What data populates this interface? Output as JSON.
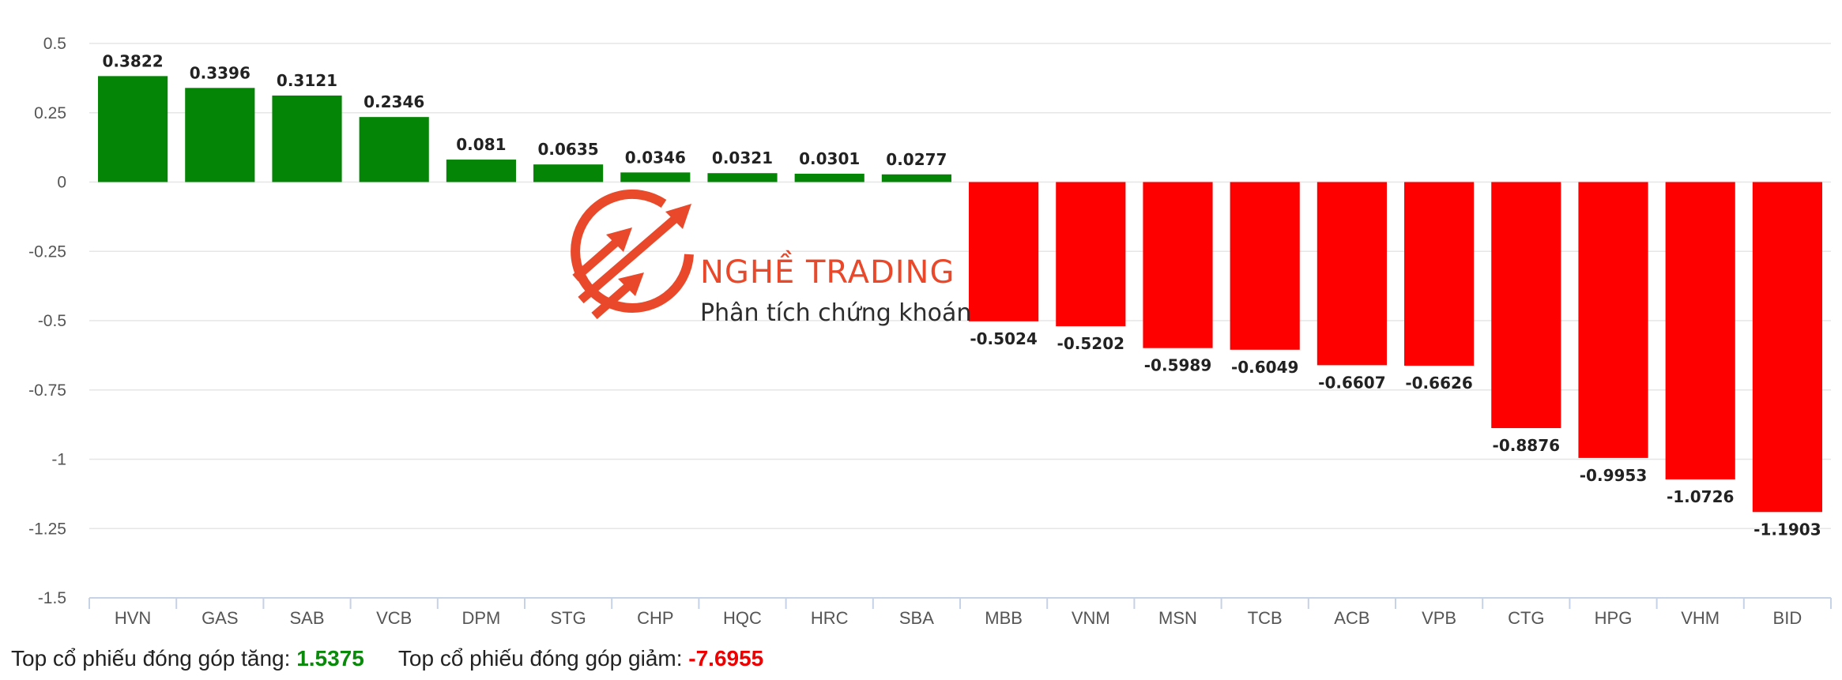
{
  "chart_data": {
    "type": "bar",
    "title": "",
    "xlabel": "",
    "ylabel": "",
    "ylim": [
      -1.5,
      0.5
    ],
    "yticks": [
      0.5,
      0.25,
      0,
      -0.25,
      -0.5,
      -0.75,
      -1,
      -1.25,
      -1.5
    ],
    "ytick_labels": [
      "0.5",
      "0.25",
      "0",
      "-0.25",
      "-0.5",
      "-0.75",
      "-1",
      "-1.25",
      "-1.5"
    ],
    "categories": [
      "HVN",
      "GAS",
      "SAB",
      "VCB",
      "DPM",
      "STG",
      "CHP",
      "HQC",
      "HRC",
      "SBA",
      "MBB",
      "VNM",
      "MSN",
      "TCB",
      "ACB",
      "VPB",
      "CTG",
      "HPG",
      "VHM",
      "BID"
    ],
    "values": [
      0.3822,
      0.3396,
      0.3121,
      0.2346,
      0.081,
      0.0635,
      0.0346,
      0.0321,
      0.0301,
      0.0277,
      -0.5024,
      -0.5202,
      -0.5989,
      -0.6049,
      -0.6607,
      -0.6626,
      -0.8876,
      -0.9953,
      -1.0726,
      -1.1903
    ],
    "value_labels": [
      "0.3822",
      "0.3396",
      "0.3121",
      "0.2346",
      "0.081",
      "0.0635",
      "0.0346",
      "0.0321",
      "0.0301",
      "0.0277",
      "-0.5024",
      "-0.5202",
      "-0.5989",
      "-0.6049",
      "-0.6607",
      "-0.6626",
      "-0.8876",
      "-0.9953",
      "-1.0726",
      "-1.1903"
    ],
    "colors": {
      "positive": "#058505",
      "negative": "#ff0000",
      "grid": "#e6e6e6",
      "axis": "#c6d2e6"
    },
    "grid": true,
    "legend": "none"
  },
  "watermark": {
    "title": "NGHỀ TRADING",
    "subtitle": "Phân tích chứng khoán",
    "icon": "trading-arrows-logo-icon",
    "color": "#e8401f"
  },
  "summary": {
    "up_label": "Top cổ phiếu đóng góp tăng:",
    "up_value": "1.5375",
    "down_label": "Top cổ phiếu đóng góp giảm:",
    "down_value": "-7.6955"
  }
}
